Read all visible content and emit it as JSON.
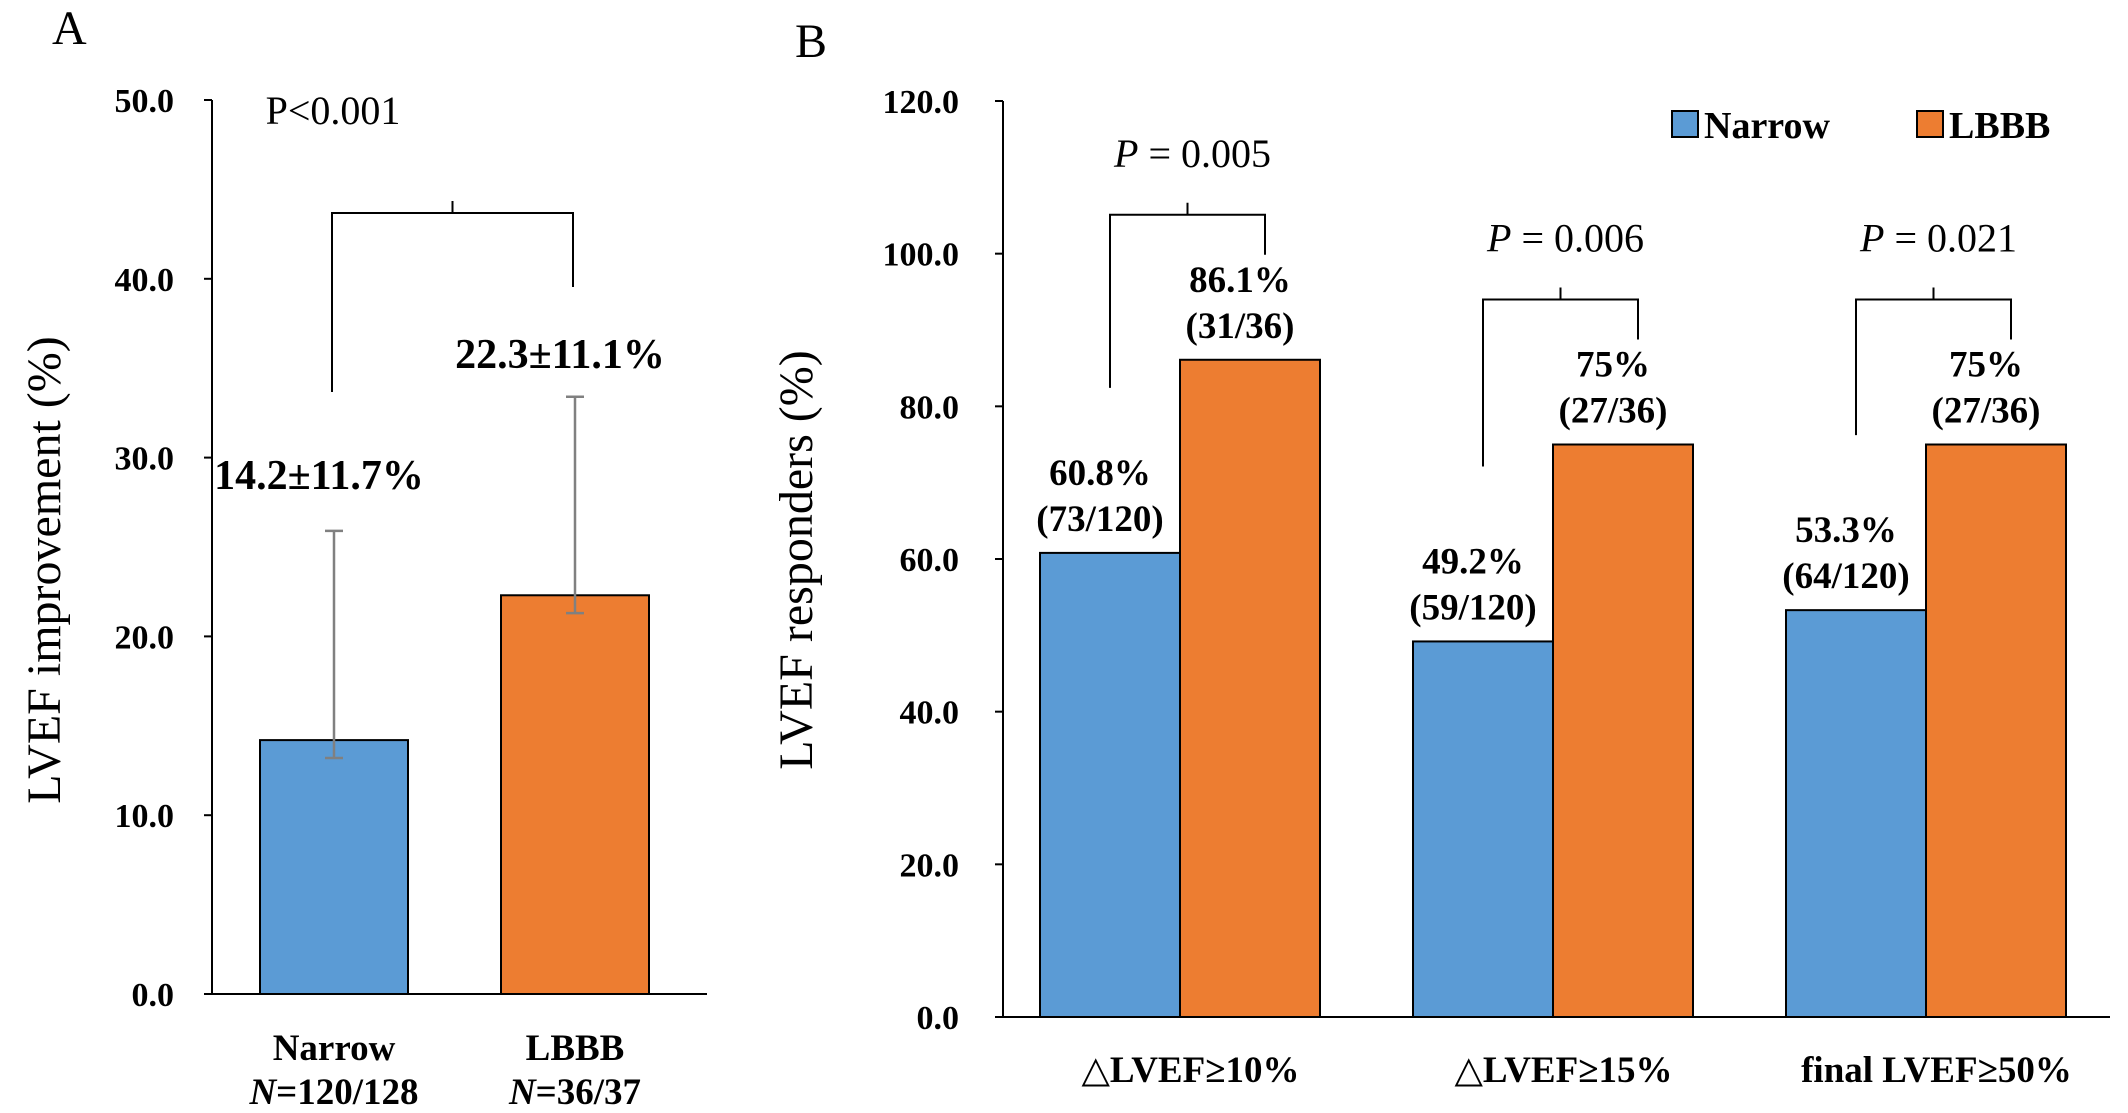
{
  "colors": {
    "narrow": "#5b9bd5",
    "lbbb": "#ed7d31",
    "axis": "#000000",
    "error": "#808080"
  },
  "chart_data": [
    {
      "panel": "A",
      "type": "bar",
      "ylabel": "LVEF improvement (%)",
      "ylim": [
        0,
        50
      ],
      "yticks": [
        "0.0",
        "10.0",
        "20.0",
        "30.0",
        "40.0",
        "50.0"
      ],
      "categories": [
        {
          "name": "Narrow",
          "n_prefix": "N",
          "n_value": "=120/128"
        },
        {
          "name": "LBBB",
          "n_prefix": "N",
          "n_value": "=36/37"
        }
      ],
      "values": [
        14.2,
        22.3
      ],
      "errors": [
        11.7,
        11.1
      ],
      "data_labels": [
        "14.2±11.7%",
        "22.3±11.1%"
      ],
      "p_value": "P<0.001"
    },
    {
      "panel": "B",
      "type": "bar",
      "ylabel": "LVEF responders (%)",
      "ylim": [
        0,
        120
      ],
      "yticks": [
        "0.0",
        "20.0",
        "40.0",
        "60.0",
        "80.0",
        "100.0",
        "120.0"
      ],
      "categories": [
        "△LVEF≥10%",
        "△LVEF≥15%",
        "final LVEF≥50%"
      ],
      "series": [
        {
          "name": "Narrow",
          "values": [
            60.8,
            49.2,
            53.3
          ],
          "labels": [
            [
              "60.8%",
              "(73/120)"
            ],
            [
              "49.2%",
              "(59/120)"
            ],
            [
              "53.3%",
              "(64/120)"
            ]
          ]
        },
        {
          "name": "LBBB",
          "values": [
            86.1,
            75,
            75
          ],
          "labels": [
            [
              "86.1%",
              "(31/36)"
            ],
            [
              "75%",
              "(27/36)"
            ],
            [
              "75%",
              "(27/36)"
            ]
          ]
        }
      ],
      "p_values": [
        {
          "italic": "P",
          "text": " = 0.005"
        },
        {
          "italic": "P",
          "text": " = 0.006"
        },
        {
          "italic": "P",
          "text": " = 0.021"
        }
      ],
      "legend_position": "top-right"
    }
  ]
}
